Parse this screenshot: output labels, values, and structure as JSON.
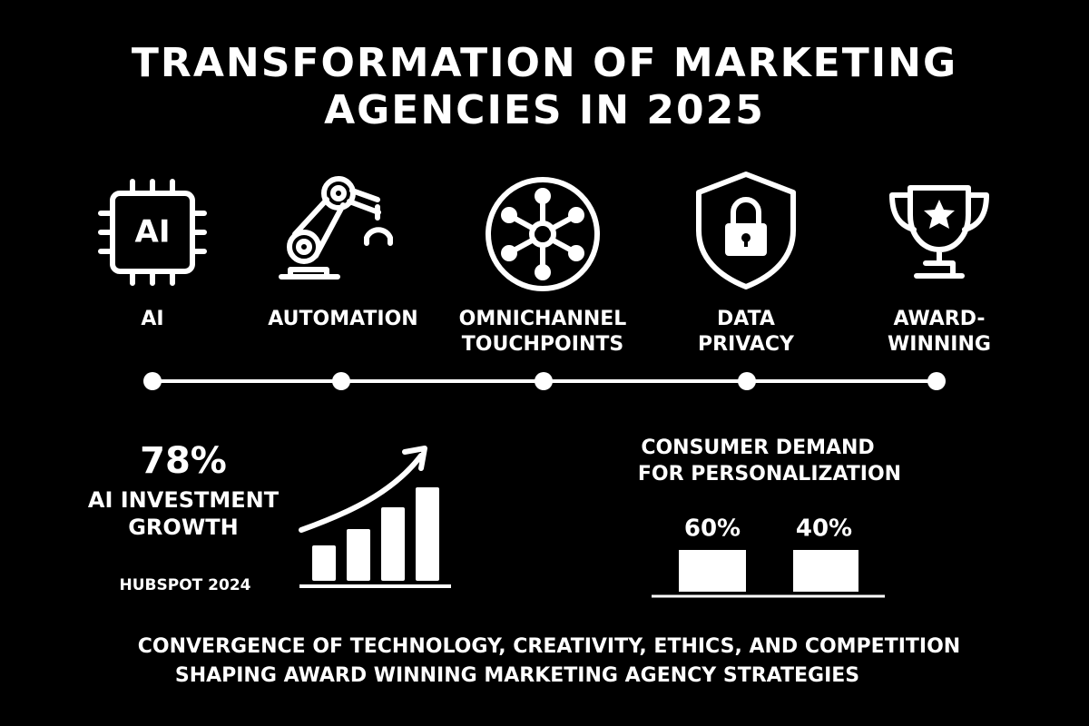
{
  "header": {
    "title_lines": [
      "TRANSFORMATION OF MARKETING",
      "AGENCIES IN 2025"
    ]
  },
  "items": [
    {
      "icon_text": "AI",
      "label_lines": [
        "AI"
      ]
    },
    {
      "label_lines": [
        "AUTOMATION"
      ]
    },
    {
      "label_lines": [
        "OMNICHANNEL",
        "TOUCHPOINTS"
      ]
    },
    {
      "label_lines": [
        "DATA",
        "PRIVACY"
      ]
    },
    {
      "label_lines": [
        "AWARD-",
        "WINNING"
      ]
    }
  ],
  "stat": {
    "value": "78%",
    "label_lines": [
      "AI INVESTMENT",
      "GROWTH"
    ],
    "source": "HUBSPOT 2024"
  },
  "demand": {
    "title_lines": [
      "CONSUMER DEMAND",
      "FOR PERSONALIZATION"
    ],
    "bars": [
      "60%",
      "40%"
    ]
  },
  "footer": {
    "lines": [
      "CONVERGENCE OF TECHNOLOGY, CREATIVITY, ETHICS, AND COMPETITION",
      "SHAPING AWARD WINNING MARKETING AGENCY STRATEGIES"
    ]
  }
}
